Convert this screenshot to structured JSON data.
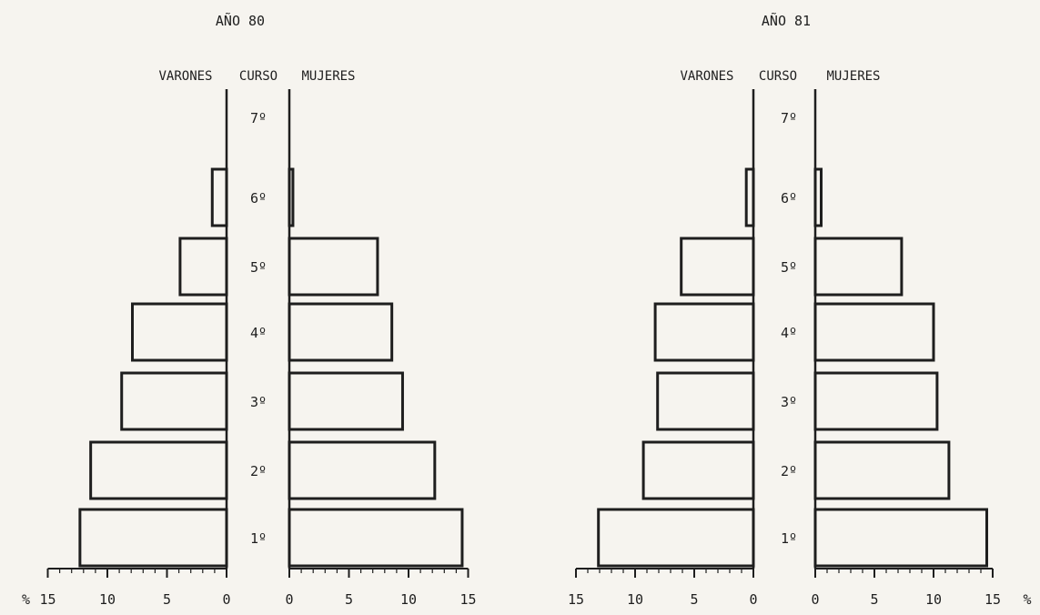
{
  "chart_data": [
    {
      "type": "bar",
      "title": "AÑO 80",
      "left_header": "VARONES",
      "center_header": "CURSO",
      "right_header": "MUJERES",
      "categories": [
        "7º",
        "6º",
        "5º",
        "4º",
        "3º",
        "2º",
        "1º"
      ],
      "series": [
        {
          "name": "VARONES",
          "values": [
            0,
            1.2,
            3.9,
            7.9,
            8.8,
            11.4,
            12.3
          ]
        },
        {
          "name": "MUJERES",
          "values": [
            0,
            0.3,
            7.4,
            8.6,
            9.5,
            12.2,
            14.5
          ]
        }
      ],
      "axis_left": {
        "ticks": [
          "15",
          "10",
          "5",
          "0"
        ],
        "prefix": "%"
      },
      "axis_right": {
        "ticks": [
          "0",
          "5",
          "10",
          "15"
        ],
        "suffix": ""
      },
      "xlim": [
        0,
        15
      ]
    },
    {
      "type": "bar",
      "title": "AÑO 81",
      "left_header": "VARONES",
      "center_header": "CURSO",
      "right_header": "MUJERES",
      "categories": [
        "7º",
        "6º",
        "5º",
        "4º",
        "3º",
        "2º",
        "1º"
      ],
      "series": [
        {
          "name": "VARONES",
          "values": [
            0,
            0.6,
            6.1,
            8.3,
            8.1,
            9.3,
            13.1
          ]
        },
        {
          "name": "MUJERES",
          "values": [
            0,
            0.5,
            7.3,
            10.0,
            10.3,
            11.3,
            14.5
          ]
        }
      ],
      "axis_left": {
        "ticks": [
          "15",
          "10",
          "5",
          "0"
        ],
        "prefix": ""
      },
      "axis_right": {
        "ticks": [
          "0",
          "5",
          "10",
          "15"
        ],
        "suffix": "%"
      },
      "xlim": [
        0,
        15
      ]
    }
  ]
}
